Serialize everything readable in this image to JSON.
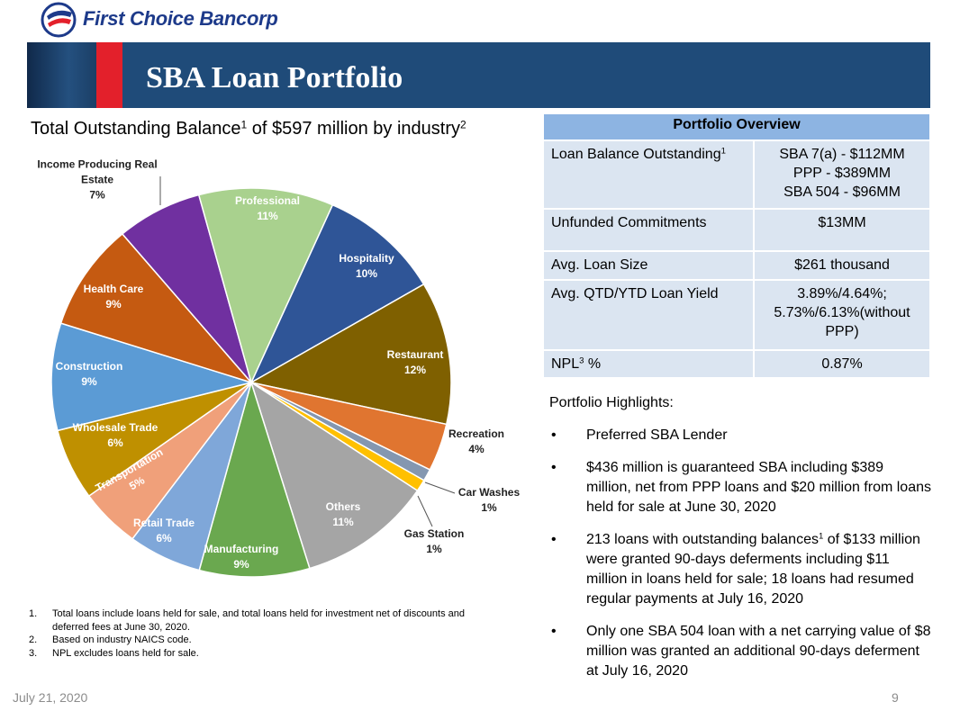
{
  "header": {
    "logo": "First Choice Bancorp",
    "title": "SBA Loan Portfolio"
  },
  "chart_data": {
    "type": "pie",
    "title": [
      "Total Outstanding Balance",
      "1",
      " of $597 million by industry",
      "2"
    ],
    "categories": [
      "Hospitality",
      "Restaurant",
      "Recreation",
      "Car Washes",
      "Gas Station",
      "Others",
      "Manufacturing",
      "Retail Trade",
      "Transportation",
      "Wholesale Trade",
      "Construction",
      "Health Care",
      "Income Producing Real Estate",
      "Professional"
    ],
    "values": [
      10,
      12,
      4,
      1,
      1,
      11,
      9,
      6,
      5,
      6,
      9,
      9,
      7,
      11
    ],
    "value_labels": [
      "10%",
      "12%",
      "4%",
      "1%",
      "1%",
      "11%",
      "9%",
      "6%",
      "5%",
      "6%",
      "9%",
      "9%",
      "7%",
      "11%"
    ],
    "colors": [
      "#2f5597",
      "#7f6000",
      "#e07530",
      "#8497b0",
      "#ffc000",
      "#a5a5a5",
      "#6aa84f",
      "#7fa7d9",
      "#f0a07a",
      "#bf9000",
      "#5b9bd5",
      "#c55a11",
      "#7030a0",
      "#a9d18e"
    ]
  },
  "table": {
    "header": "Portfolio Overview",
    "rows": [
      {
        "label": "Loan Balance Outstanding",
        "sup": "1",
        "value": [
          "SBA 7(a) - $112MM",
          "PPP - $389MM",
          "SBA 504 - $96MM"
        ]
      },
      {
        "label": "Unfunded Commitments",
        "value": [
          "$13MM"
        ]
      },
      {
        "label": "Avg. Loan Size",
        "value": [
          "$261 thousand"
        ]
      },
      {
        "label": "Avg. QTD/YTD Loan Yield",
        "value": [
          "3.89%/4.64%; 5.73%/6.13%(without PPP)"
        ]
      },
      {
        "label": "NPL",
        "sup": "3",
        "label2": " %",
        "value": [
          "0.87%"
        ]
      }
    ]
  },
  "highlights": {
    "title": "Portfolio Highlights:",
    "items": [
      {
        "text": "Preferred SBA Lender"
      },
      {
        "text": "$436 million is guaranteed SBA including $389 million, net from PPP loans and $20 million from loans held for sale at June 30, 2020"
      },
      {
        "text": "213 loans with outstanding balances",
        "sup": "1",
        "text2": " of $133 million were granted 90-days deferments including $11 million in loans held for sale; 18 loans had resumed regular payments at July 16, 2020"
      },
      {
        "text": "Only one SBA 504 loan with a net carrying value of $8 million was granted an additional 90-days deferment at July 16, 2020"
      }
    ]
  },
  "footnotes": [
    {
      "number": "1.",
      "text": "Total loans include loans held for sale, and total loans held for investment net of discounts and deferred fees at June 30, 2020."
    },
    {
      "number": "2.",
      "text": "Based on industry NAICS code."
    },
    {
      "number": "3.",
      "text": "NPL excludes loans held for sale."
    }
  ],
  "footer": {
    "date": "July 21, 2020",
    "page": "9"
  }
}
